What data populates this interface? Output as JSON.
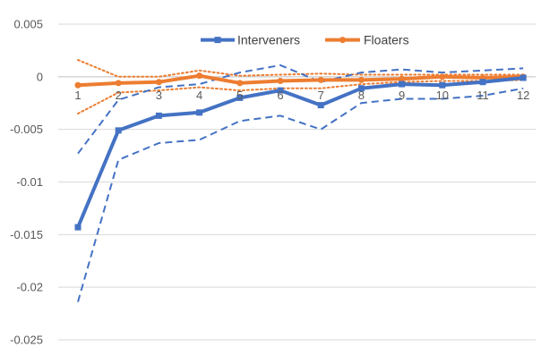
{
  "chart_data": {
    "type": "line",
    "title": "",
    "xlabel": "",
    "ylabel": "",
    "x": [
      1,
      2,
      3,
      4,
      5,
      6,
      7,
      8,
      9,
      10,
      11,
      12
    ],
    "ylim": [
      -0.025,
      0.005
    ],
    "y_ticks": [
      0.005,
      0,
      -0.005,
      -0.01,
      -0.015,
      -0.02,
      -0.025
    ],
    "y_tick_labels": [
      "0.005",
      "0",
      "-0.005",
      "-0.01",
      "-0.015",
      "-0.02",
      "-0.025"
    ],
    "x_tick_labels": [
      "1",
      "2",
      "3",
      "4",
      "5",
      "6",
      "7",
      "8",
      "9",
      "10",
      "11",
      "12"
    ],
    "grid": true,
    "legend_position": "top-center",
    "series": [
      {
        "name": "Interveners",
        "color": "#4472C4",
        "style": "solid-with-markers",
        "values": [
          -0.0143,
          -0.0051,
          -0.0037,
          -0.0034,
          -0.002,
          -0.0013,
          -0.0027,
          -0.0011,
          -0.0007,
          -0.0008,
          -0.0005,
          -0.0001
        ]
      },
      {
        "name": "Floaters",
        "color": "#ED7D31",
        "style": "solid-with-markers",
        "values": [
          -0.0008,
          -0.0006,
          -0.0005,
          0.0001,
          -0.0006,
          -0.0004,
          -0.0003,
          -0.0003,
          -0.0002,
          0.0,
          -0.0001,
          0.0
        ]
      },
      {
        "color": "#4472C4",
        "style": "dashed",
        "values": [
          -0.0073,
          -0.0022,
          -0.001,
          -0.0007,
          0.0004,
          0.0011,
          -0.0005,
          0.0004,
          0.0007,
          0.0004,
          0.0006,
          0.0008
        ]
      },
      {
        "color": "#4472C4",
        "style": "dashed",
        "values": [
          -0.0214,
          -0.0079,
          -0.0063,
          -0.006,
          -0.0042,
          -0.0037,
          -0.005,
          -0.0025,
          -0.0021,
          -0.0021,
          -0.0018,
          -0.0011
        ]
      },
      {
        "color": "#ED7D31",
        "style": "dotted",
        "values": [
          0.0016,
          0.0,
          0.0,
          0.0006,
          0.0001,
          0.0002,
          0.0003,
          0.0002,
          0.0002,
          0.0002,
          0.0002,
          0.0002
        ]
      },
      {
        "color": "#ED7D31",
        "style": "dotted",
        "values": [
          -0.0035,
          -0.0015,
          -0.0013,
          -0.001,
          -0.0013,
          -0.0011,
          -0.0011,
          -0.0007,
          -0.0005,
          -0.0004,
          -0.0004,
          -0.0003
        ]
      }
    ]
  }
}
